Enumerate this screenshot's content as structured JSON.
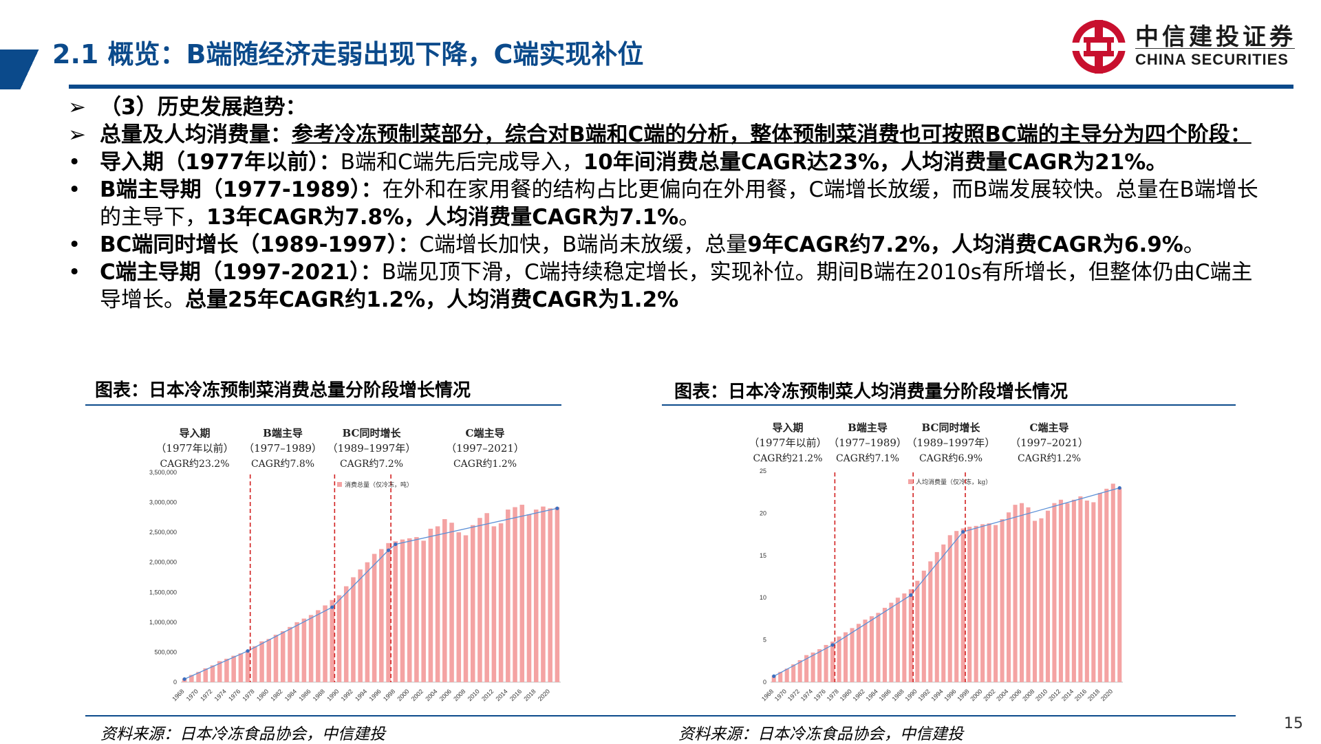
{
  "header": {
    "title": "2.1 概览：B端随经济走弱出现下降，C端实现补位",
    "logo_cn": "中信建投证券",
    "logo_en": "CHINA SECURITIES"
  },
  "content": {
    "line1": "（3）历史发展趋势：",
    "line2_head": "总量及人均消费量：",
    "line2_body": "参考冷冻预制菜部分，综合对B端和C端的分析，整体预制菜消费也可按照BC端的主导分为四个阶段：",
    "stages": [
      {
        "head": "导入期（1977年以前）",
        "sep": "：",
        "normal": "B端和C端先后完成导入，",
        "bold": "10年间消费总量CAGR达23%，人均消费量CAGR为21%。",
        "tail": ""
      },
      {
        "head": "B端主导期（1977-1989）",
        "sep": "：",
        "normal": "在外和在家用餐的结构占比更偏向在外用餐，C端增长放缓，而B端发展较快。总量在B端增长的主导下，",
        "bold": "13年CAGR为7.8%，人均消费量CAGR为7.1%",
        "tail": "。"
      },
      {
        "head": "BC端同时增长（1989-1997）",
        "sep": "：",
        "normal": "C端增长加快，B端尚未放缓，总量",
        "bold": "9年CAGR约7.2%，人均消费CAGR为6.9%",
        "tail": "。"
      },
      {
        "head": "C端主导期（1997-2021）",
        "sep": "：",
        "normal": "B端见顶下滑，C端持续稳定增长，实现补位。期间B端在2010s有所增长，但整体仍由C端主导增长。",
        "bold": "总量25年CAGR约1.2%，人均消费CAGR为1.2%",
        "tail": ""
      }
    ]
  },
  "charts": {
    "left_title": "图表：日本冷冻预制菜消费总量分阶段增长情况",
    "right_title": "图表：日本冷冻预制菜人均消费量分阶段增长情况",
    "left_source": "资料来源：日本冷冻食品协会，中信建投",
    "right_source": "资料来源：日本冷冻食品协会，中信建投"
  },
  "chart_data": [
    {
      "type": "bar",
      "legend": "消费总量（仅冷冻，吨）",
      "legend_position": "top",
      "ylim": [
        0,
        3500000
      ],
      "yticks": [
        0,
        500000,
        1000000,
        1500000,
        2000000,
        2500000,
        3000000,
        3500000
      ],
      "ytick_labels": [
        "0",
        "500,000",
        "1,000,000",
        "1,500,000",
        "2,000,000",
        "2,500,000",
        "3,000,000",
        "3,500,000"
      ],
      "stage_labels": [
        {
          "name": "导入期",
          "period": "（1977年以前）",
          "cagr": "CAGR约23.2%"
        },
        {
          "name": "B端主导",
          "period": "（1977–1989）",
          "cagr": "CAGR约7.8%"
        },
        {
          "name": "BC同时增长",
          "period": "（1989–1997年）",
          "cagr": "CAGR约7.2%"
        },
        {
          "name": "C端主导",
          "period": "（1997–2021）",
          "cagr": "CAGR约1.2%"
        }
      ],
      "split_years": [
        1977,
        1989,
        1997
      ],
      "trend_points": [
        [
          1968,
          50000
        ],
        [
          1977,
          520000
        ],
        [
          1989,
          1250000
        ],
        [
          1997,
          2200000
        ],
        [
          1998,
          2300000
        ],
        [
          2021,
          2900000
        ]
      ],
      "x_start": 1968,
      "xtick_labels": [
        "1968",
        "1970",
        "1972",
        "1974",
        "1976",
        "1978",
        "1980",
        "1982",
        "1984",
        "1986",
        "1988",
        "1990",
        "1992",
        "1994",
        "1996",
        "1998",
        "2000",
        "2002",
        "2004",
        "2006",
        "2008",
        "2010",
        "2012",
        "2014",
        "2016",
        "2018",
        "2020"
      ],
      "values": [
        60000,
        120000,
        170000,
        230000,
        280000,
        350000,
        390000,
        440000,
        480000,
        530000,
        600000,
        680000,
        720000,
        790000,
        850000,
        920000,
        1000000,
        1060000,
        1120000,
        1200000,
        1280000,
        1370000,
        1450000,
        1600000,
        1750000,
        1880000,
        2000000,
        2140000,
        2220000,
        2320000,
        2350000,
        2380000,
        2400000,
        2420000,
        2360000,
        2560000,
        2600000,
        2720000,
        2660000,
        2500000,
        2450000,
        2620000,
        2740000,
        2820000,
        2600000,
        2650000,
        2880000,
        2920000,
        2960000,
        2800000,
        2880000,
        2930000,
        2900000,
        2920000
      ],
      "values_note": ""
    },
    {
      "type": "bar",
      "legend": "人均消费量（仅冷冻，kg）",
      "legend_position": "top",
      "ylim": [
        0,
        25
      ],
      "yticks": [
        0,
        5,
        10,
        15,
        20,
        25
      ],
      "ytick_labels": [
        "0",
        "5",
        "10",
        "15",
        "20",
        "25"
      ],
      "stage_labels": [
        {
          "name": "导入期",
          "period": "（1977年以前）",
          "cagr": "CAGR约21.2%"
        },
        {
          "name": "B端主导",
          "period": "（1977–1989）",
          "cagr": "CAGR约7.1%"
        },
        {
          "name": "BC同时增长",
          "period": "（1989–1997年）",
          "cagr": "CAGR约6.9%"
        },
        {
          "name": "C端主导",
          "period": "（1997–2021）",
          "cagr": "CAGR约1.2%"
        }
      ],
      "split_years": [
        1977,
        1989,
        1997
      ],
      "trend_points": [
        [
          1968,
          0.7
        ],
        [
          1977,
          4.4
        ],
        [
          1989,
          10.3
        ],
        [
          1997,
          17.8
        ],
        [
          2021,
          23.0
        ]
      ],
      "x_start": 1968,
      "xtick_labels": [
        "1968",
        "1970",
        "1972",
        "1974",
        "1976",
        "1978",
        "1980",
        "1982",
        "1984",
        "1986",
        "1988",
        "1990",
        "1992",
        "1994",
        "1996",
        "1998",
        "2000",
        "2002",
        "2004",
        "2006",
        "2008",
        "2010",
        "2012",
        "2014",
        "2016",
        "2018",
        "2020"
      ],
      "values": [
        0.8,
        1.2,
        1.6,
        2.1,
        2.6,
        3.2,
        3.5,
        3.9,
        4.4,
        4.8,
        5.4,
        5.9,
        6.4,
        6.9,
        7.4,
        7.8,
        8.2,
        8.8,
        9.4,
        10.0,
        10.5,
        11.0,
        12.0,
        13.2,
        14.3,
        15.4,
        16.3,
        17.4,
        17.9,
        18.2,
        18.4,
        18.5,
        18.7,
        18.8,
        18.6,
        19.3,
        20.1,
        21.0,
        21.2,
        20.7,
        19.1,
        19.4,
        20.3,
        21.2,
        21.6,
        21.2,
        21.6,
        22.0,
        21.5,
        21.3,
        22.4,
        22.9,
        23.5,
        23.0
      ],
      "values_note": ""
    }
  ]
}
